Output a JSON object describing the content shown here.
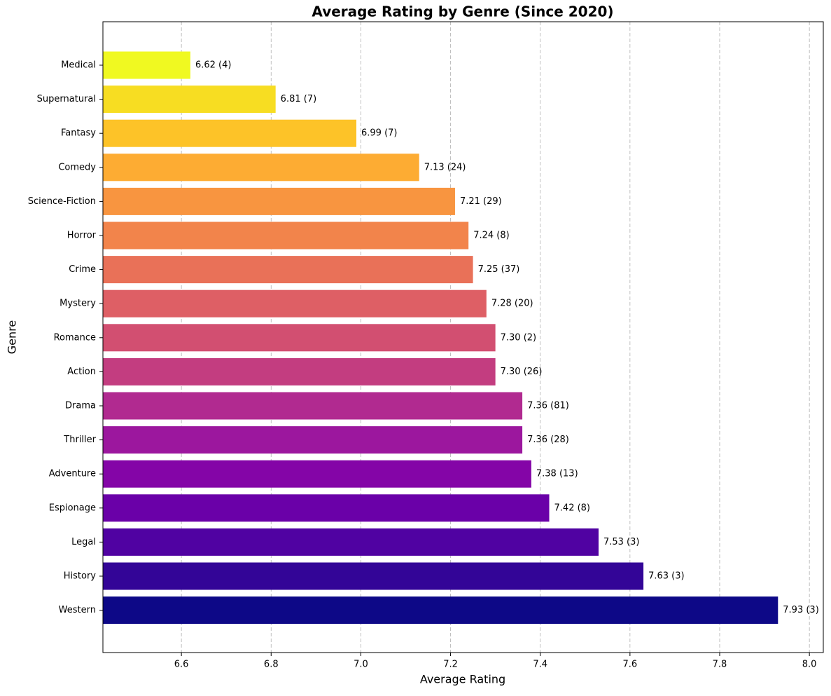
{
  "chart_data": {
    "type": "barh",
    "title": "Average Rating by Genre (Since 2020)",
    "x_label": "Average Rating",
    "y_label": "Genre",
    "categories": [
      "Medical",
      "Supernatural",
      "Fantasy",
      "Comedy",
      "Science-Fiction",
      "Horror",
      "Crime",
      "Mystery",
      "Romance",
      "Action",
      "Drama",
      "Thriller",
      "Adventure",
      "Espionage",
      "Legal",
      "History",
      "Western"
    ],
    "values": [
      6.62,
      6.81,
      6.99,
      7.13,
      7.21,
      7.24,
      7.25,
      7.28,
      7.3,
      7.3,
      7.36,
      7.36,
      7.38,
      7.42,
      7.53,
      7.63,
      7.93
    ],
    "value_labels": [
      "6.62 (4)",
      "6.81 (7)",
      "6.99 (7)",
      "7.13 (24)",
      "7.21 (29)",
      "7.24 (8)",
      "7.25 (37)",
      "7.28 (20)",
      "7.30 (2)",
      "7.30 (26)",
      "7.36 (81)",
      "7.36 (28)",
      "7.38 (13)",
      "7.42 (8)",
      "7.53 (3)",
      "7.63 (3)",
      "7.93 (3)"
    ],
    "colors": [
      "#f0f921",
      "#f7dd22",
      "#fdc328",
      "#fdac33",
      "#f89540",
      "#f2844b",
      "#e97158",
      "#de5f65",
      "#d24f71",
      "#c33d80",
      "#b12a90",
      "#9c179e",
      "#8405a7",
      "#6a00a8",
      "#5002a2",
      "#330597",
      "#0d0887"
    ],
    "xlim": [
      6.425,
      8.031
    ],
    "xticks": [
      {
        "value": 6.6,
        "label": "6.6"
      },
      {
        "value": 6.8,
        "label": "6.8"
      },
      {
        "value": 7.0,
        "label": "7.0"
      },
      {
        "value": 7.2,
        "label": "7.2"
      },
      {
        "value": 7.4,
        "label": "7.4"
      },
      {
        "value": 7.6,
        "label": "7.6"
      },
      {
        "value": 7.8,
        "label": "7.8"
      },
      {
        "value": 8.0,
        "label": "8.0"
      }
    ],
    "grid": true
  }
}
